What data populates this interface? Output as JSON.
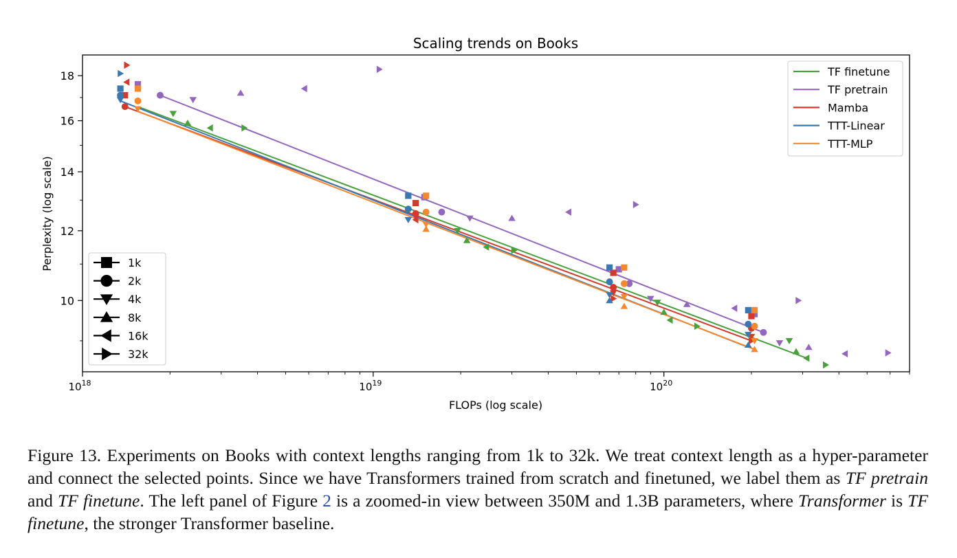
{
  "chart_data": {
    "type": "scatter",
    "title": "Scaling trends on Books",
    "xlabel": "FLOPs (log scale)",
    "ylabel": "Perplexity (log scale)",
    "xscale": "log",
    "yscale": "log",
    "xlim": [
      1e+18,
      7e+20
    ],
    "ylim": [
      8.3,
      19.0
    ],
    "grid": false,
    "x_ticks": [
      {
        "value": 1e+18,
        "base": "10",
        "exp": "18"
      },
      {
        "value": 1e+19,
        "base": "10",
        "exp": "19"
      },
      {
        "value": 1e+20,
        "base": "10",
        "exp": "20"
      }
    ],
    "y_ticks": [
      10,
      12,
      14,
      16,
      18
    ],
    "colors": {
      "TF finetune": "#4aa03d",
      "TF pretrain": "#9367bd",
      "Mamba": "#d13a2c",
      "TTT-Linear": "#3a78b1",
      "TTT-MLP": "#f3882f"
    },
    "marker_legend": [
      {
        "label": "1k",
        "marker": "square"
      },
      {
        "label": "2k",
        "marker": "circle"
      },
      {
        "label": "4k",
        "marker": "triangle-down"
      },
      {
        "label": "8k",
        "marker": "triangle-up"
      },
      {
        "label": "16k",
        "marker": "triangle-left"
      },
      {
        "label": "32k",
        "marker": "triangle-right"
      }
    ],
    "legend_position_series": "top-right",
    "legend_position_markers": "bottom-left",
    "series": [
      {
        "name": "TF finetune",
        "fit_line": [
          [
            1.55e+18,
            16.6
          ],
          [
            3.1e+20,
            8.6
          ]
        ],
        "points": [
          {
            "ctx": "4k",
            "x": 2.05e+18,
            "y": 16.3
          },
          {
            "ctx": "8k",
            "x": 2.3e+18,
            "y": 15.9
          },
          {
            "ctx": "16k",
            "x": 2.75e+18,
            "y": 15.7
          },
          {
            "ctx": "32k",
            "x": 3.6e+18,
            "y": 15.7
          },
          {
            "ctx": "4k",
            "x": 1.95e+19,
            "y": 12.0
          },
          {
            "ctx": "8k",
            "x": 2.1e+19,
            "y": 11.7
          },
          {
            "ctx": "16k",
            "x": 2.45e+19,
            "y": 11.5
          },
          {
            "ctx": "32k",
            "x": 3.05e+19,
            "y": 11.4
          },
          {
            "ctx": "4k",
            "x": 9.5e+19,
            "y": 9.95
          },
          {
            "ctx": "8k",
            "x": 1e+20,
            "y": 9.7
          },
          {
            "ctx": "16k",
            "x": 1.05e+20,
            "y": 9.5
          },
          {
            "ctx": "32k",
            "x": 1.3e+20,
            "y": 9.35
          },
          {
            "ctx": "4k",
            "x": 2.7e+20,
            "y": 9.0
          },
          {
            "ctx": "8k",
            "x": 2.85e+20,
            "y": 8.75
          },
          {
            "ctx": "16k",
            "x": 3.1e+20,
            "y": 8.6
          },
          {
            "ctx": "32k",
            "x": 3.6e+20,
            "y": 8.45
          }
        ]
      },
      {
        "name": "TF pretrain",
        "fit_line": [
          [
            1.85e+18,
            17.1
          ],
          [
            2.2e+20,
            9.2
          ]
        ],
        "points": [
          {
            "ctx": "1k",
            "x": 1.55e+18,
            "y": 17.6
          },
          {
            "ctx": "2k",
            "x": 1.85e+18,
            "y": 17.1
          },
          {
            "ctx": "4k",
            "x": 2.4e+18,
            "y": 16.9
          },
          {
            "ctx": "8k",
            "x": 3.5e+18,
            "y": 17.2
          },
          {
            "ctx": "16k",
            "x": 5.8e+18,
            "y": 17.4
          },
          {
            "ctx": "32k",
            "x": 1.05e+19,
            "y": 18.3
          },
          {
            "ctx": "1k",
            "x": 1.5e+19,
            "y": 13.1
          },
          {
            "ctx": "2k",
            "x": 1.72e+19,
            "y": 12.6
          },
          {
            "ctx": "4k",
            "x": 2.15e+19,
            "y": 12.4
          },
          {
            "ctx": "8k",
            "x": 3e+19,
            "y": 12.4
          },
          {
            "ctx": "16k",
            "x": 4.7e+19,
            "y": 12.6
          },
          {
            "ctx": "32k",
            "x": 8e+19,
            "y": 12.85
          },
          {
            "ctx": "1k",
            "x": 7e+19,
            "y": 10.85
          },
          {
            "ctx": "2k",
            "x": 7.6e+19,
            "y": 10.45
          },
          {
            "ctx": "4k",
            "x": 9e+19,
            "y": 10.05
          },
          {
            "ctx": "8k",
            "x": 1.2e+20,
            "y": 9.9
          },
          {
            "ctx": "16k",
            "x": 1.75e+20,
            "y": 9.8
          },
          {
            "ctx": "32k",
            "x": 2.9e+20,
            "y": 10.0
          },
          {
            "ctx": "1k",
            "x": 2.05e+20,
            "y": 9.65
          },
          {
            "ctx": "2k",
            "x": 2.2e+20,
            "y": 9.2
          },
          {
            "ctx": "4k",
            "x": 2.5e+20,
            "y": 8.95
          },
          {
            "ctx": "8k",
            "x": 3.15e+20,
            "y": 8.85
          },
          {
            "ctx": "16k",
            "x": 4.2e+20,
            "y": 8.7
          },
          {
            "ctx": "32k",
            "x": 5.9e+20,
            "y": 8.72
          }
        ]
      },
      {
        "name": "Mamba",
        "fit_line": [
          [
            1.4e+18,
            16.6
          ],
          [
            2e+20,
            9.0
          ]
        ],
        "points": [
          {
            "ctx": "1k",
            "x": 1.4e+18,
            "y": 17.1
          },
          {
            "ctx": "2k",
            "x": 1.4e+18,
            "y": 16.6
          },
          {
            "ctx": "16k",
            "x": 1.42e+18,
            "y": 17.7
          },
          {
            "ctx": "32k",
            "x": 1.42e+18,
            "y": 18.5
          },
          {
            "ctx": "1k",
            "x": 1.4e+19,
            "y": 12.9
          },
          {
            "ctx": "2k",
            "x": 1.4e+19,
            "y": 12.55
          },
          {
            "ctx": "4k",
            "x": 1.4e+19,
            "y": 12.45
          },
          {
            "ctx": "16k",
            "x": 1.4e+19,
            "y": 12.35
          },
          {
            "ctx": "1k",
            "x": 6.7e+19,
            "y": 10.75
          },
          {
            "ctx": "2k",
            "x": 6.7e+19,
            "y": 10.35
          },
          {
            "ctx": "4k",
            "x": 6.7e+19,
            "y": 10.2
          },
          {
            "ctx": "32k",
            "x": 6.7e+19,
            "y": 10.05
          },
          {
            "ctx": "1k",
            "x": 2e+20,
            "y": 9.6
          },
          {
            "ctx": "2k",
            "x": 2e+20,
            "y": 9.3
          },
          {
            "ctx": "4k",
            "x": 2e+20,
            "y": 9.1
          },
          {
            "ctx": "32k",
            "x": 2e+20,
            "y": 9.0
          }
        ]
      },
      {
        "name": "TTT-Linear",
        "fit_line": [
          [
            1.35e+18,
            16.85
          ],
          [
            1.95e+20,
            8.85
          ]
        ],
        "points": [
          {
            "ctx": "1k",
            "x": 1.35e+18,
            "y": 17.4
          },
          {
            "ctx": "2k",
            "x": 1.35e+18,
            "y": 17.1
          },
          {
            "ctx": "4k",
            "x": 1.35e+18,
            "y": 16.9
          },
          {
            "ctx": "32k",
            "x": 1.35e+18,
            "y": 18.1
          },
          {
            "ctx": "1k",
            "x": 1.32e+19,
            "y": 13.15
          },
          {
            "ctx": "2k",
            "x": 1.32e+19,
            "y": 12.7
          },
          {
            "ctx": "4k",
            "x": 1.32e+19,
            "y": 12.35
          },
          {
            "ctx": "1k",
            "x": 6.5e+19,
            "y": 10.9
          },
          {
            "ctx": "2k",
            "x": 6.5e+19,
            "y": 10.5
          },
          {
            "ctx": "4k",
            "x": 6.5e+19,
            "y": 10.15
          },
          {
            "ctx": "8k",
            "x": 6.5e+19,
            "y": 10.0
          },
          {
            "ctx": "1k",
            "x": 1.95e+20,
            "y": 9.75
          },
          {
            "ctx": "2k",
            "x": 1.95e+20,
            "y": 9.4
          },
          {
            "ctx": "4k",
            "x": 1.95e+20,
            "y": 9.15
          },
          {
            "ctx": "8k",
            "x": 1.95e+20,
            "y": 8.9
          }
        ]
      },
      {
        "name": "TTT-MLP",
        "fit_line": [
          [
            1.55e+18,
            16.4
          ],
          [
            2.05e+20,
            8.8
          ]
        ],
        "points": [
          {
            "ctx": "1k",
            "x": 1.55e+18,
            "y": 17.4
          },
          {
            "ctx": "2k",
            "x": 1.55e+18,
            "y": 16.85
          },
          {
            "ctx": "4k",
            "x": 1.55e+18,
            "y": 16.5
          },
          {
            "ctx": "1k",
            "x": 1.52e+19,
            "y": 13.15
          },
          {
            "ctx": "2k",
            "x": 1.52e+19,
            "y": 12.6
          },
          {
            "ctx": "4k",
            "x": 1.52e+19,
            "y": 12.2
          },
          {
            "ctx": "8k",
            "x": 1.52e+19,
            "y": 12.05
          },
          {
            "ctx": "1k",
            "x": 7.3e+19,
            "y": 10.9
          },
          {
            "ctx": "2k",
            "x": 7.3e+19,
            "y": 10.45
          },
          {
            "ctx": "4k",
            "x": 7.3e+19,
            "y": 10.1
          },
          {
            "ctx": "8k",
            "x": 7.3e+19,
            "y": 9.85
          },
          {
            "ctx": "1k",
            "x": 2.05e+20,
            "y": 9.75
          },
          {
            "ctx": "2k",
            "x": 2.05e+20,
            "y": 9.35
          },
          {
            "ctx": "4k",
            "x": 2.05e+20,
            "y": 9.0
          },
          {
            "ctx": "8k",
            "x": 2.05e+20,
            "y": 8.8
          }
        ]
      }
    ]
  },
  "caption": {
    "part1": "Figure 13. Experiments on Books with context lengths ranging from 1k to 32k. We treat context length as a hyper-parameter and connect the selected points. Since we have Transformers trained from scratch and finetuned, we label them as ",
    "tf_pretrain": "TF pretrain",
    "and": " and ",
    "tf_finetune": "TF finetune",
    "part2": ". The left panel of Figure ",
    "figure_ref": "2",
    "part3": " is a zoomed-in view between 350M and 1.3B parameters, where ",
    "transformer": "Transformer",
    "is": " is ",
    "tf_finetune_2": "TF finetune",
    "part4": ", the stronger Transformer baseline."
  }
}
